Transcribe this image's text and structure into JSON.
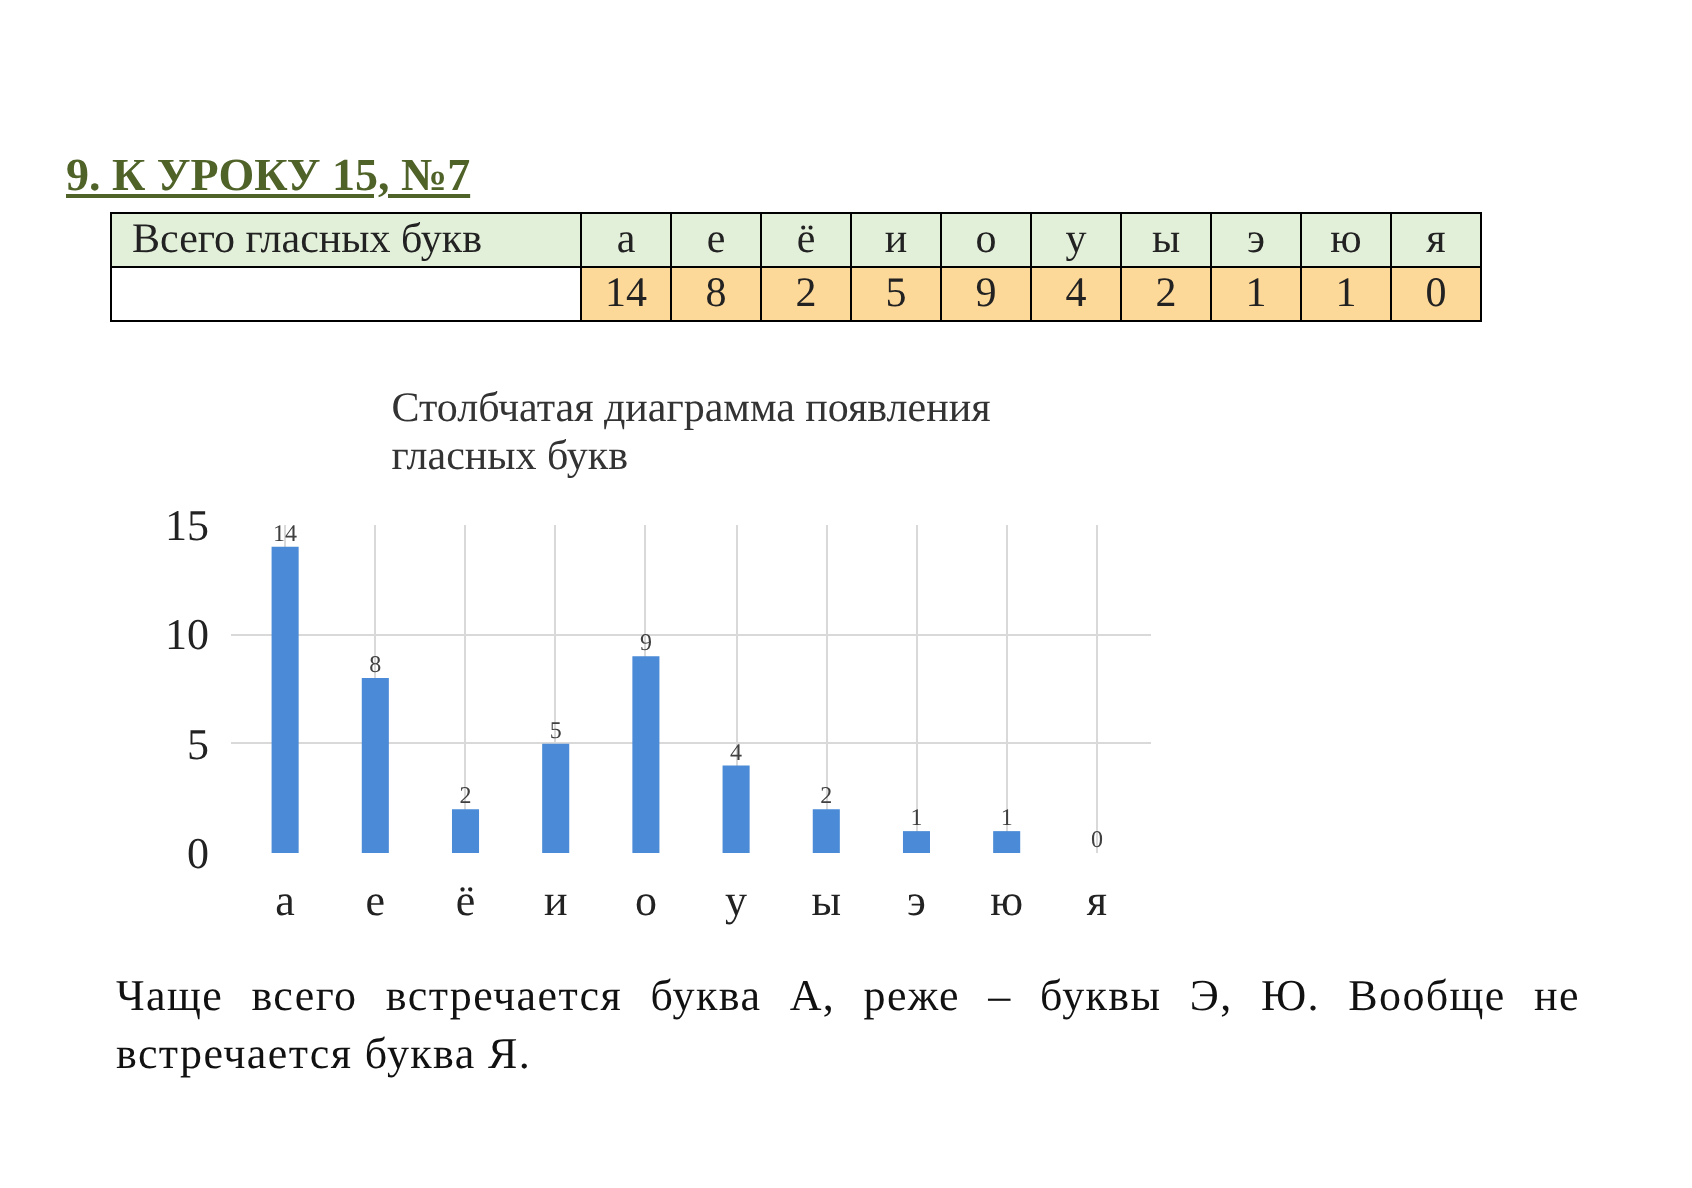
{
  "chart_data": {
    "type": "bar",
    "title": "Столбчатая диаграмма появления гласных букв",
    "categories": [
      "а",
      "е",
      "ё",
      "и",
      "о",
      "у",
      "ы",
      "э",
      "ю",
      "я"
    ],
    "values": [
      14,
      8,
      2,
      5,
      9,
      4,
      2,
      1,
      1,
      0
    ],
    "color": "#4a8ad6",
    "value_labels": [
      "14",
      "8",
      "2",
      "5",
      "9",
      "4",
      "2",
      "1",
      "1",
      "0"
    ],
    "ylim": [
      0,
      15
    ],
    "yticks": [
      0,
      5,
      10,
      15
    ],
    "grid": true,
    "annotations": [
      "9. К УРОКУ 15, №7",
      "Всего гласных букв",
      "Чаще всего встречается буква А, реже – буквы Э, Ю. Вообще не встречается буква Я."
    ]
  }
}
